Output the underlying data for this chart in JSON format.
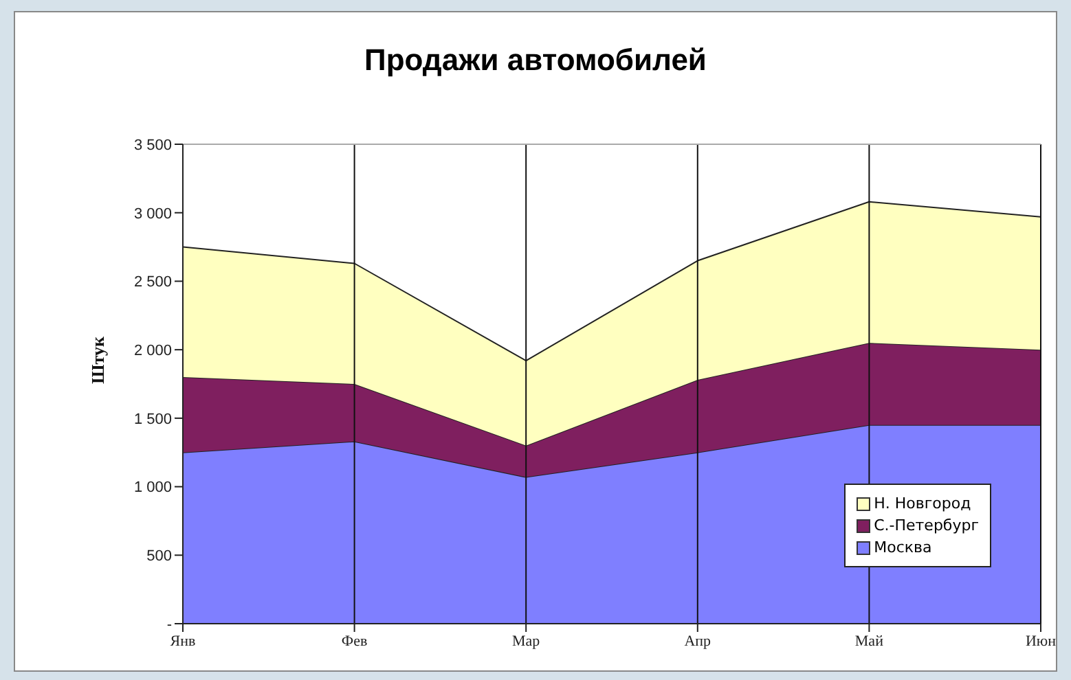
{
  "chart_data": {
    "type": "area",
    "stacked": true,
    "title": "Продажи автомобилей",
    "ylabel": "Штук",
    "categories": [
      "Янв",
      "Фев",
      "Мар",
      "Апр",
      "Май",
      "Июн"
    ],
    "series": [
      {
        "name": "Москва",
        "color": "#7f7fff",
        "values": [
          1250,
          1330,
          1070,
          1250,
          1450,
          1450
        ]
      },
      {
        "name": "С.-Петербург",
        "color": "#7f1f5f",
        "values": [
          550,
          420,
          230,
          530,
          600,
          550
        ]
      },
      {
        "name": "Н. Новгород",
        "color": "#ffffc0",
        "values": [
          950,
          880,
          620,
          870,
          1030,
          970
        ]
      }
    ],
    "ylim": [
      0,
      3500
    ],
    "yticks": [
      {
        "value": 0,
        "label": "-"
      },
      {
        "value": 500,
        "label": "500"
      },
      {
        "value": 1000,
        "label": "1 000"
      },
      {
        "value": 1500,
        "label": "1 500"
      },
      {
        "value": 2000,
        "label": "2 000"
      },
      {
        "value": 2500,
        "label": "2 500"
      },
      {
        "value": 3000,
        "label": "3 000"
      },
      {
        "value": 3500,
        "label": "3 500"
      }
    ],
    "grid": "x",
    "legend": "bottom right"
  }
}
